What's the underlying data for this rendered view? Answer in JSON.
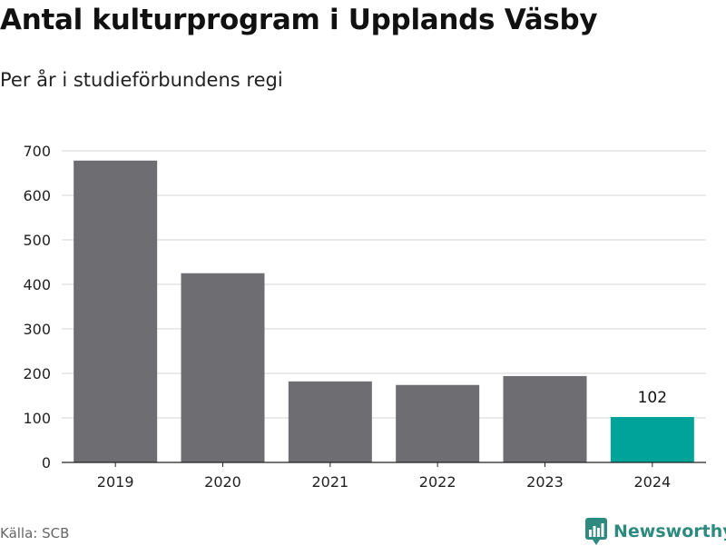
{
  "header": {
    "title": "Antal kulturprogram i Upplands Väsby",
    "subtitle": "Per år i studieförbundens regi"
  },
  "footer": {
    "source": "Källa: SCB",
    "brand": "Newsworthy",
    "brand_icon": "newsworthy-logo-icon"
  },
  "colors": {
    "bar": "#6e6d72",
    "highlight": "#00a39a",
    "grid": "#dddddd",
    "axis": "#222222",
    "brand": "#2e8a7f"
  },
  "chart_data": {
    "type": "bar",
    "title": "Antal kulturprogram i Upplands Väsby",
    "subtitle": "Per år i studieförbundens regi",
    "categories": [
      "2019",
      "2020",
      "2021",
      "2022",
      "2023",
      "2024"
    ],
    "values": [
      678,
      425,
      182,
      174,
      194,
      102
    ],
    "highlight_index": 5,
    "data_labels": [
      null,
      null,
      null,
      null,
      null,
      "102"
    ],
    "xlabel": "",
    "ylabel": "",
    "ylim": [
      0,
      700
    ],
    "yticks": [
      0,
      100,
      200,
      300,
      400,
      500,
      600,
      700
    ],
    "grid": true,
    "legend": "none"
  }
}
